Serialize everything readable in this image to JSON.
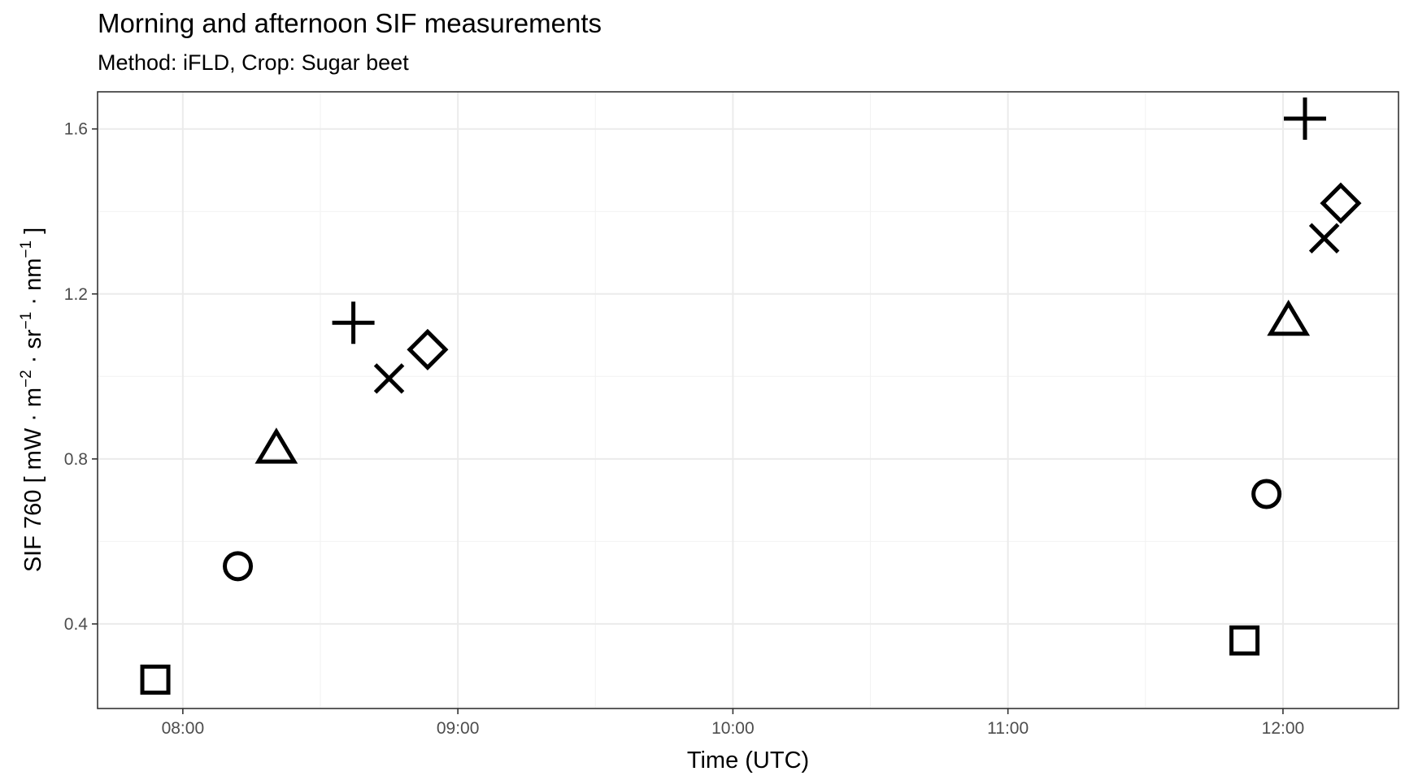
{
  "chart_data": {
    "type": "scatter",
    "title": "Morning and afternoon SIF measurements",
    "subtitle": "Method: iFLD, Crop: Sugar beet",
    "xlabel": "Time (UTC)",
    "ylabel": "SIF 760 [ mW · m⁻² · sr⁻¹ · nm⁻¹ ]",
    "ylabel_parts": {
      "base": "SIF 760 [ mW · m",
      "exp1": "−2",
      "mid1": " · sr",
      "exp2": "−1",
      "mid2": " · nm",
      "exp3": "−1",
      "end": " ]"
    },
    "x_ticks": [
      "08:00",
      "09:00",
      "10:00",
      "11:00",
      "12:00"
    ],
    "x_tick_hours": [
      8,
      9,
      10,
      11,
      12
    ],
    "xlim": [
      "07:42",
      "12:25"
    ],
    "xlim_hours": [
      7.69,
      12.42
    ],
    "y_ticks": [
      "0.4",
      "0.8",
      "1.2",
      "1.6"
    ],
    "y_tick_values": [
      0.4,
      0.8,
      1.2,
      1.6
    ],
    "ylim": [
      0.195,
      1.69
    ],
    "grid": true,
    "legend": "none",
    "marker_color": "#000000",
    "points": [
      {
        "time": "07:54",
        "hour": 7.9,
        "value": 0.265,
        "marker": "square"
      },
      {
        "time": "08:12",
        "hour": 8.2,
        "value": 0.54,
        "marker": "circle"
      },
      {
        "time": "08:20",
        "hour": 8.34,
        "value": 0.825,
        "marker": "triangle"
      },
      {
        "time": "08:37",
        "hour": 8.62,
        "value": 1.13,
        "marker": "plus"
      },
      {
        "time": "08:45",
        "hour": 8.75,
        "value": 0.995,
        "marker": "cross"
      },
      {
        "time": "08:53",
        "hour": 8.89,
        "value": 1.065,
        "marker": "diamond"
      },
      {
        "time": "11:52",
        "hour": 11.86,
        "value": 0.36,
        "marker": "square"
      },
      {
        "time": "11:56",
        "hour": 11.94,
        "value": 0.715,
        "marker": "circle"
      },
      {
        "time": "12:01",
        "hour": 12.02,
        "value": 1.135,
        "marker": "triangle"
      },
      {
        "time": "12:04",
        "hour": 12.08,
        "value": 1.625,
        "marker": "plus"
      },
      {
        "time": "12:09",
        "hour": 12.15,
        "value": 1.335,
        "marker": "cross"
      },
      {
        "time": "12:13",
        "hour": 12.21,
        "value": 1.42,
        "marker": "diamond"
      }
    ]
  }
}
